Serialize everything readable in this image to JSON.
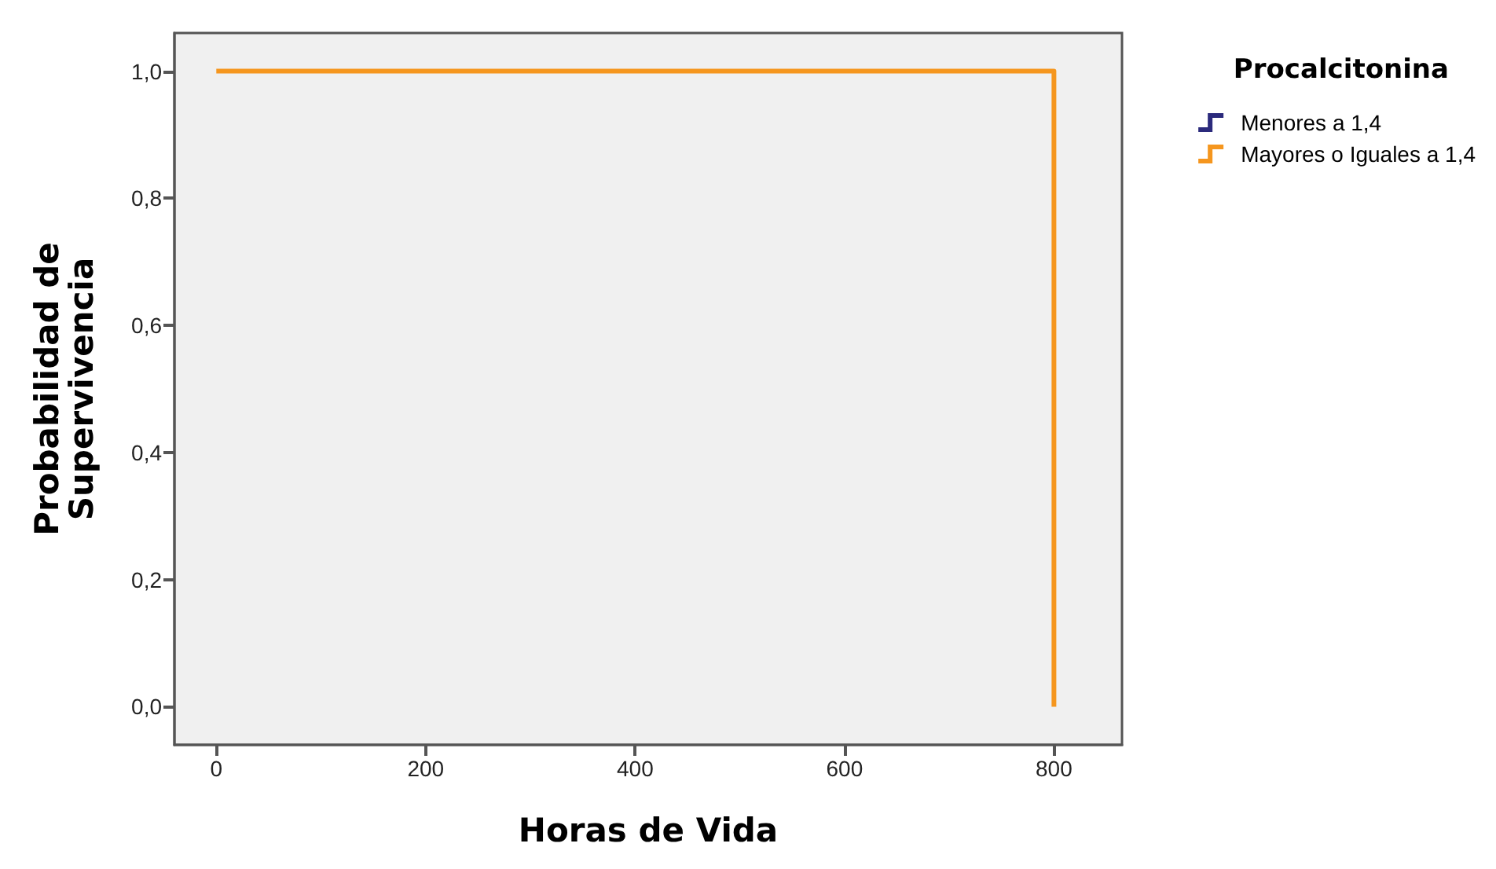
{
  "chart_data": {
    "type": "step",
    "xlabel": "Horas de Vida",
    "ylabel": "Probabilidad de\nSupervivencia",
    "legend_title": "Procalcitonina",
    "legend": "top right",
    "xlim": [
      -40,
      865
    ],
    "xticks": [
      0,
      200,
      400,
      600,
      800
    ],
    "ylim": [
      -0.06,
      1.06
    ],
    "yticks": [
      {
        "value": 0,
        "label": "0,0"
      },
      {
        "value": 0.2,
        "label": "0,2"
      },
      {
        "value": 0.4,
        "label": "0,4"
      },
      {
        "value": 0.6,
        "label": "0,6"
      },
      {
        "value": 0.8,
        "label": "0,8"
      },
      {
        "value": 1,
        "label": "1,0"
      }
    ],
    "grid": false,
    "series": [
      {
        "name": "Menores a 1,4",
        "color": "#2b2a7c"
      },
      {
        "name": "Mayores o Iguales a 1,4",
        "color": "#f5961e",
        "x": [
          0,
          800
        ],
        "values": [
          1,
          0
        ]
      }
    ]
  }
}
